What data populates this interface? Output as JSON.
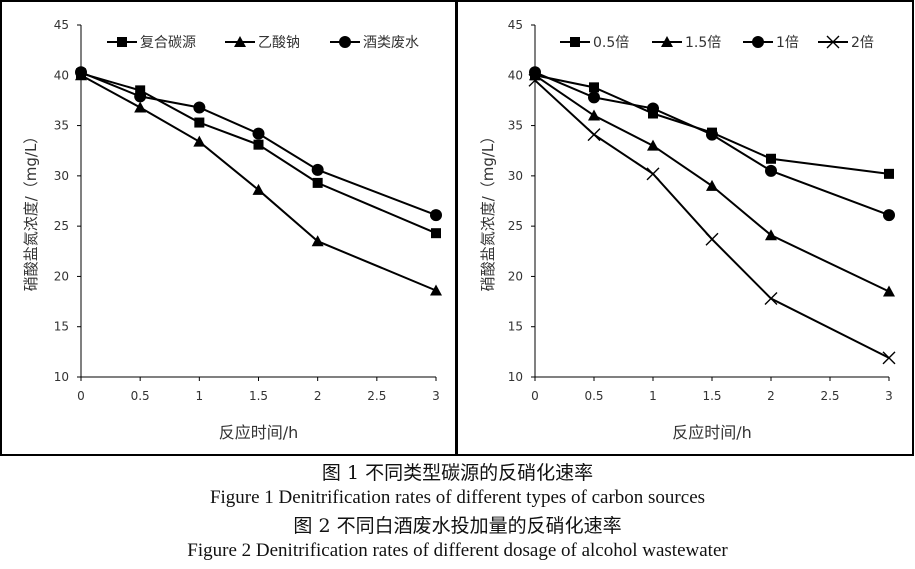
{
  "chart_data": [
    {
      "type": "line",
      "title": "",
      "xlabel": "反应时间/h",
      "ylabel": "硝酸盐氮浓度/（mg/L）",
      "x": [
        0,
        0.5,
        1,
        1.5,
        2,
        2.5,
        3
      ],
      "x_ticks": [
        "0",
        "0.5",
        "1",
        "1.5",
        "2",
        "2.5",
        "3"
      ],
      "y_ticks": [
        "10",
        "15",
        "20",
        "25",
        "30",
        "35",
        "40",
        "45"
      ],
      "xlim": [
        0,
        3
      ],
      "ylim": [
        10,
        45
      ],
      "grid": false,
      "legend_position": "top",
      "series": [
        {
          "name": "复合碳源",
          "marker": "square",
          "x": [
            0,
            0.5,
            1,
            1.5,
            2,
            3
          ],
          "values": [
            40.2,
            38.5,
            35.3,
            33.1,
            29.3,
            24.3
          ]
        },
        {
          "name": "乙酸钠",
          "marker": "triangle",
          "x": [
            0,
            0.5,
            1,
            1.5,
            2,
            3
          ],
          "values": [
            40.0,
            36.8,
            33.4,
            28.6,
            23.5,
            18.6
          ]
        },
        {
          "name": "酒类废水",
          "marker": "circle",
          "x": [
            0,
            0.5,
            1,
            1.5,
            2,
            3
          ],
          "values": [
            40.3,
            37.9,
            36.8,
            34.2,
            30.6,
            26.1
          ]
        }
      ]
    },
    {
      "type": "line",
      "title": "",
      "xlabel": "反应时间/h",
      "ylabel": "硝酸盐氮浓度/（mg/L）",
      "x_ticks": [
        "0",
        "0.5",
        "1",
        "1.5",
        "2",
        "2.5",
        "3"
      ],
      "y_ticks": [
        "10",
        "15",
        "20",
        "25",
        "30",
        "35",
        "40",
        "45"
      ],
      "xlim": [
        0,
        3
      ],
      "ylim": [
        10,
        45
      ],
      "grid": false,
      "legend_position": "top",
      "series": [
        {
          "name": "0.5倍",
          "marker": "square",
          "x": [
            0,
            0.5,
            1,
            1.5,
            2,
            3
          ],
          "values": [
            40.0,
            38.8,
            36.2,
            34.3,
            31.7,
            30.2
          ]
        },
        {
          "name": "1.5倍",
          "marker": "triangle",
          "x": [
            0,
            0.5,
            1,
            1.5,
            2,
            3
          ],
          "values": [
            40.0,
            36.0,
            33.0,
            29.0,
            24.1,
            18.5
          ]
        },
        {
          "name": "1倍",
          "marker": "circle",
          "x": [
            0,
            0.5,
            1,
            1.5,
            2,
            3
          ],
          "values": [
            40.3,
            37.8,
            36.7,
            34.1,
            30.5,
            26.1
          ]
        },
        {
          "name": "2倍",
          "marker": "x",
          "x": [
            0,
            0.5,
            1,
            1.5,
            2,
            3
          ],
          "values": [
            39.5,
            34.1,
            30.2,
            23.7,
            17.8,
            11.9
          ]
        }
      ]
    }
  ],
  "captions": {
    "fig1_zh": "图 1 不同类型碳源的反硝化速率",
    "fig1_en": "Figure 1 Denitrification rates of different types of carbon sources",
    "fig2_zh": "图 2 不同白酒废水投加量的反硝化速率",
    "fig2_en": "Figure 2 Denitrification rates of different dosage of alcohol wastewater"
  }
}
